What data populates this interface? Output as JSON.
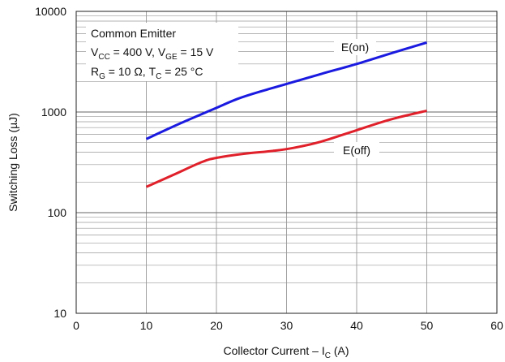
{
  "chart_data": {
    "type": "line",
    "xlabel": "Collector Current – I",
    "xlabel_sub": "C",
    "xlabel_unit": " (A)",
    "ylabel": "Switching Loss (µJ)",
    "xlim": [
      0,
      60
    ],
    "ylim": [
      10,
      10000
    ],
    "yscale": "log",
    "grid": true,
    "x_ticks": [
      "0",
      "10",
      "20",
      "30",
      "40",
      "50",
      "60"
    ],
    "y_ticks": [
      "10",
      "100",
      "1000",
      "10000"
    ],
    "annotation": {
      "line1": "Common Emitter",
      "line2": {
        "v1": "V",
        "s1": "CC",
        "t1": " = 400 V, V",
        "s2": "GE",
        "t2": " = 15 V"
      },
      "line3": {
        "v1": "R",
        "s1": "G",
        "t1": " = 10 Ω, T",
        "s2": "C",
        "t2": " = 25 °C"
      }
    },
    "series": [
      {
        "name": "E(on)",
        "color": "#1a1ae0",
        "x": [
          10,
          15,
          20,
          23,
          26,
          30,
          35,
          40,
          45,
          50
        ],
        "y": [
          540,
          780,
          1100,
          1350,
          1580,
          1900,
          2400,
          3000,
          3850,
          4900
        ]
      },
      {
        "name": "E(off)",
        "color": "#e0202a",
        "x": [
          10,
          14,
          18,
          20,
          24,
          28,
          31,
          35,
          40,
          45,
          50
        ],
        "y": [
          180,
          240,
          320,
          350,
          385,
          410,
          440,
          510,
          660,
          850,
          1030
        ]
      }
    ]
  }
}
